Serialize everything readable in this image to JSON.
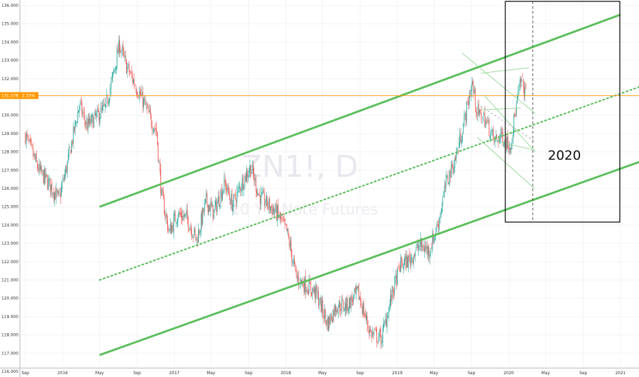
{
  "chart_data": {
    "type": "candlestick",
    "symbol_watermark": "ZN1!, D",
    "subtitle_watermark": "10 Y T-Note Futures",
    "y_ticks": [
      "116.000",
      "117.000",
      "118.000",
      "119.000",
      "120.000",
      "121.000",
      "122.000",
      "123.000",
      "124.000",
      "125.000",
      "126.000",
      "127.000",
      "128.000",
      "129.000",
      "130.000",
      "131.000",
      "132.000",
      "133.000",
      "134.000",
      "135.000",
      "136.000"
    ],
    "x_ticks": [
      "Sep",
      "2016",
      "May",
      "Sep",
      "2017",
      "May",
      "Sep",
      "2018",
      "May",
      "Sep",
      "2019",
      "May",
      "Sep",
      "2020",
      "May",
      "Sep",
      "2021"
    ],
    "ylim": [
      115.7,
      136.3
    ],
    "current_price": "131.078",
    "current_change": "2.33%",
    "annotation": "2020",
    "price_path": [
      [
        "2015-09-01",
        128.9
      ],
      [
        "2015-10-15",
        127.0
      ],
      [
        "2015-11-20",
        126.2
      ],
      [
        "2015-12-20",
        125.4
      ],
      [
        "2016-01-20",
        127.6
      ],
      [
        "2016-02-25",
        130.6
      ],
      [
        "2016-03-20",
        129.4
      ],
      [
        "2016-04-20",
        129.9
      ],
      [
        "2016-05-20",
        130.4
      ],
      [
        "2016-06-15",
        132.2
      ],
      [
        "2016-07-05",
        133.9
      ],
      [
        "2016-07-25",
        132.8
      ],
      [
        "2016-08-25",
        131.7
      ],
      [
        "2016-09-25",
        130.6
      ],
      [
        "2016-10-20",
        129.6
      ],
      [
        "2016-11-03",
        129.2
      ],
      [
        "2016-11-20",
        125.6
      ],
      [
        "2016-12-15",
        123.6
      ],
      [
        "2017-01-10",
        124.6
      ],
      [
        "2017-02-10",
        124.4
      ],
      [
        "2017-03-15",
        123.2
      ],
      [
        "2017-04-15",
        125.3
      ],
      [
        "2017-05-10",
        124.7
      ],
      [
        "2017-06-15",
        126.3
      ],
      [
        "2017-07-10",
        125.1
      ],
      [
        "2017-08-10",
        126.3
      ],
      [
        "2017-09-08",
        127.2
      ],
      [
        "2017-10-05",
        125.6
      ],
      [
        "2017-11-05",
        125.1
      ],
      [
        "2017-12-05",
        124.6
      ],
      [
        "2018-01-05",
        123.6
      ],
      [
        "2018-02-05",
        121.1
      ],
      [
        "2018-03-10",
        120.7
      ],
      [
        "2018-04-10",
        120.3
      ],
      [
        "2018-05-18",
        118.6
      ],
      [
        "2018-06-15",
        119.6
      ],
      [
        "2018-07-20",
        119.6
      ],
      [
        "2018-08-25",
        120.3
      ],
      [
        "2018-10-05",
        118.1
      ],
      [
        "2018-11-10",
        117.8
      ],
      [
        "2018-12-10",
        119.9
      ],
      [
        "2019-01-10",
        121.8
      ],
      [
        "2019-02-10",
        122.1
      ],
      [
        "2019-03-15",
        122.9
      ],
      [
        "2019-04-15",
        122.6
      ],
      [
        "2019-05-15",
        124.1
      ],
      [
        "2019-06-10",
        126.3
      ],
      [
        "2019-07-10",
        127.6
      ],
      [
        "2019-08-10",
        129.8
      ],
      [
        "2019-09-03",
        131.8
      ],
      [
        "2019-09-20",
        130.1
      ],
      [
        "2019-10-15",
        129.8
      ],
      [
        "2019-11-15",
        128.6
      ],
      [
        "2019-12-10",
        128.9
      ],
      [
        "2020-01-05",
        128.3
      ],
      [
        "2020-01-25",
        130.4
      ],
      [
        "2020-02-10",
        131.9
      ],
      [
        "2020-02-28",
        131.1
      ]
    ],
    "lines": [
      {
        "role": "upper channel",
        "style": "solid",
        "from": [
          "2016-05-01",
          125.0
        ],
        "to": [
          "2021-01-01",
          135.5
        ]
      },
      {
        "role": "mid channel",
        "style": "dotted",
        "from": [
          "2016-05-01",
          121.0
        ],
        "to": [
          "2021-05-01",
          131.9
        ]
      },
      {
        "role": "lower channel",
        "style": "solid",
        "from": [
          "2016-05-01",
          116.9
        ],
        "to": [
          "2021-05-01",
          127.8
        ]
      }
    ],
    "color_up": "#26a69a",
    "color_down": "#ef5350",
    "channel_color": "#5cbf5c",
    "price_line_color": "#ff9800"
  }
}
